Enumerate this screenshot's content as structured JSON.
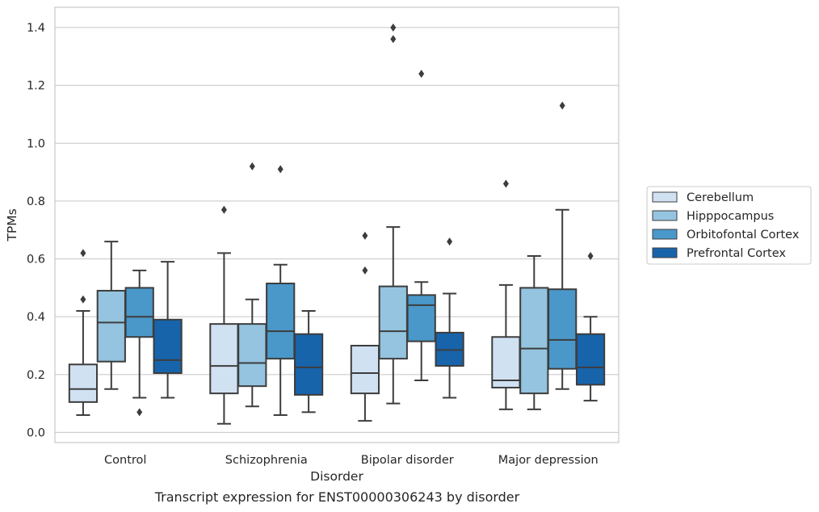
{
  "chart_data": {
    "type": "box",
    "xlabel": "Disorder",
    "ylabel": "TPMs",
    "caption": "Transcript expression for ENST00000306243 by disorder",
    "ylim": [
      -0.035,
      1.47
    ],
    "yticks": [
      0.0,
      0.2,
      0.4,
      0.6,
      0.8,
      1.0,
      1.2,
      1.4
    ],
    "ytick_labels": [
      "0.0",
      "0.2",
      "0.4",
      "0.6",
      "0.8",
      "1.0",
      "1.2",
      "1.4"
    ],
    "grid": "horizontal",
    "legend_position": "right",
    "categories": [
      "Control",
      "Schizophrenia",
      "Bipolar disorder",
      "Major depression"
    ],
    "series": [
      {
        "name": "Cerebellum",
        "color": "#d0e1f2",
        "boxes": [
          {
            "whislo": 0.06,
            "q1": 0.105,
            "med": 0.15,
            "q3": 0.235,
            "whishi": 0.42,
            "fliers": [
              0.46,
              0.62
            ]
          },
          {
            "whislo": 0.03,
            "q1": 0.135,
            "med": 0.23,
            "q3": 0.375,
            "whishi": 0.62,
            "fliers": [
              0.77
            ]
          },
          {
            "whislo": 0.04,
            "q1": 0.135,
            "med": 0.205,
            "q3": 0.3,
            "whishi": 0.3,
            "fliers": [
              0.56,
              0.68
            ]
          },
          {
            "whislo": 0.08,
            "q1": 0.155,
            "med": 0.18,
            "q3": 0.33,
            "whishi": 0.51,
            "fliers": [
              0.86
            ]
          }
        ]
      },
      {
        "name": "Hipppocampus",
        "color": "#94c4df",
        "boxes": [
          {
            "whislo": 0.15,
            "q1": 0.245,
            "med": 0.38,
            "q3": 0.49,
            "whishi": 0.66,
            "fliers": []
          },
          {
            "whislo": 0.09,
            "q1": 0.16,
            "med": 0.24,
            "q3": 0.375,
            "whishi": 0.46,
            "fliers": [
              0.92
            ]
          },
          {
            "whislo": 0.1,
            "q1": 0.255,
            "med": 0.35,
            "q3": 0.505,
            "whishi": 0.71,
            "fliers": [
              1.36,
              1.4
            ]
          },
          {
            "whislo": 0.08,
            "q1": 0.135,
            "med": 0.29,
            "q3": 0.5,
            "whishi": 0.61,
            "fliers": []
          }
        ]
      },
      {
        "name": "Orbitofontal Cortex",
        "color": "#4a98c9",
        "boxes": [
          {
            "whislo": 0.12,
            "q1": 0.33,
            "med": 0.4,
            "q3": 0.5,
            "whishi": 0.56,
            "fliers": [
              0.07
            ]
          },
          {
            "whislo": 0.06,
            "q1": 0.255,
            "med": 0.35,
            "q3": 0.515,
            "whishi": 0.58,
            "fliers": [
              0.91
            ]
          },
          {
            "whislo": 0.18,
            "q1": 0.315,
            "med": 0.44,
            "q3": 0.475,
            "whishi": 0.52,
            "fliers": [
              1.24
            ]
          },
          {
            "whislo": 0.15,
            "q1": 0.22,
            "med": 0.32,
            "q3": 0.495,
            "whishi": 0.77,
            "fliers": [
              1.13
            ]
          }
        ]
      },
      {
        "name": "Prefrontal Cortex",
        "color": "#1764ab",
        "boxes": [
          {
            "whislo": 0.12,
            "q1": 0.205,
            "med": 0.25,
            "q3": 0.39,
            "whishi": 0.59,
            "fliers": []
          },
          {
            "whislo": 0.07,
            "q1": 0.13,
            "med": 0.225,
            "q3": 0.34,
            "whishi": 0.42,
            "fliers": []
          },
          {
            "whislo": 0.12,
            "q1": 0.23,
            "med": 0.285,
            "q3": 0.345,
            "whishi": 0.48,
            "fliers": [
              0.66
            ]
          },
          {
            "whislo": 0.11,
            "q1": 0.165,
            "med": 0.225,
            "q3": 0.34,
            "whishi": 0.4,
            "fliers": [
              0.61
            ]
          }
        ]
      }
    ]
  }
}
